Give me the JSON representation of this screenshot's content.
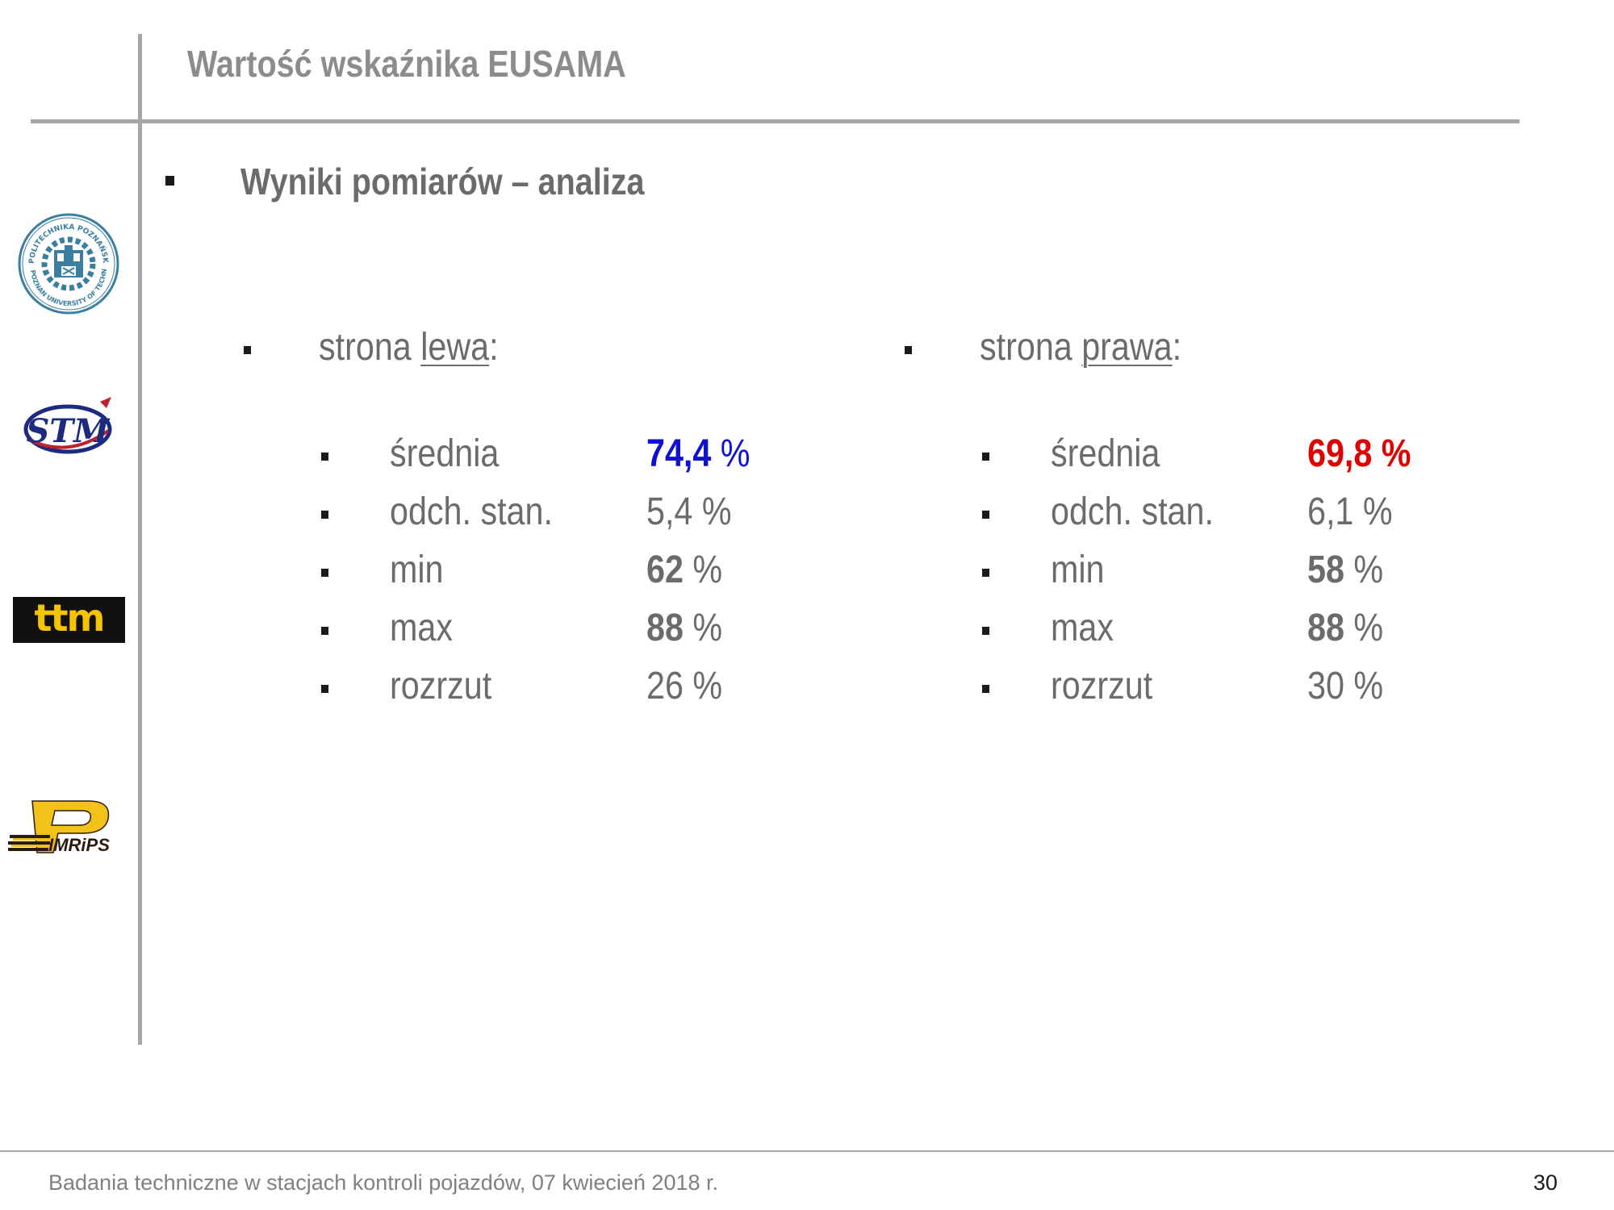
{
  "slide": {
    "title": "Wartość wskaźnika EUSAMA",
    "section_heading": "Wyniki pomiarów – analiza"
  },
  "left_side": {
    "heading_prefix": "strona ",
    "heading_word": "lewa",
    "heading_suffix": ":",
    "rows": [
      {
        "label": "średnia",
        "value": "74,4",
        "unit": " %",
        "bold": true,
        "highlight": "#1010d0"
      },
      {
        "label": "odch. stan.",
        "value": "5,4",
        "unit": " %",
        "bold": false
      },
      {
        "label": "min",
        "value": "62",
        "unit": " %",
        "bold": true
      },
      {
        "label": "max",
        "value": "88",
        "unit": " %",
        "bold": true
      },
      {
        "label": "rozrzut",
        "value": "26",
        "unit": " %",
        "bold": false
      }
    ]
  },
  "right_side": {
    "heading_prefix": "strona ",
    "heading_word": "prawa",
    "heading_suffix": ":",
    "rows": [
      {
        "label": "średnia",
        "value": "69,8",
        "unit": " %",
        "bold": true,
        "highlight": "#e00000"
      },
      {
        "label": "odch. stan.",
        "value": "6,1",
        "unit": " %",
        "bold": false
      },
      {
        "label": "min",
        "value": "58",
        "unit": " %",
        "bold": true
      },
      {
        "label": "max",
        "value": "88",
        "unit": " %",
        "bold": true
      },
      {
        "label": "rozrzut",
        "value": "30",
        "unit": " %",
        "bold": false
      }
    ]
  },
  "logos": {
    "university_seal_text_top": "POLITECHNIKA POZNAŃSKA",
    "university_seal_text_bottom": "POZNAN UNIVERSITY OF TECHNOLOGY",
    "stm_text": "STM",
    "ttm_text": "ttm",
    "pimrips_text": "IMRiPS"
  },
  "footer": {
    "text": "Badania techniczne w stacjach kontroli pojazdów, 07 kwiecień 2018 r.",
    "page_number": "30"
  },
  "colors": {
    "rule": "#a6a6a6",
    "body_text": "#6b6b6b",
    "left_highlight": "#1010d0",
    "right_highlight": "#e00000",
    "ttm_bg": "#111111",
    "ttm_fg": "#f5c400",
    "pimrips_yellow": "#f2c21a",
    "pimrips_dark": "#2a1a10"
  }
}
